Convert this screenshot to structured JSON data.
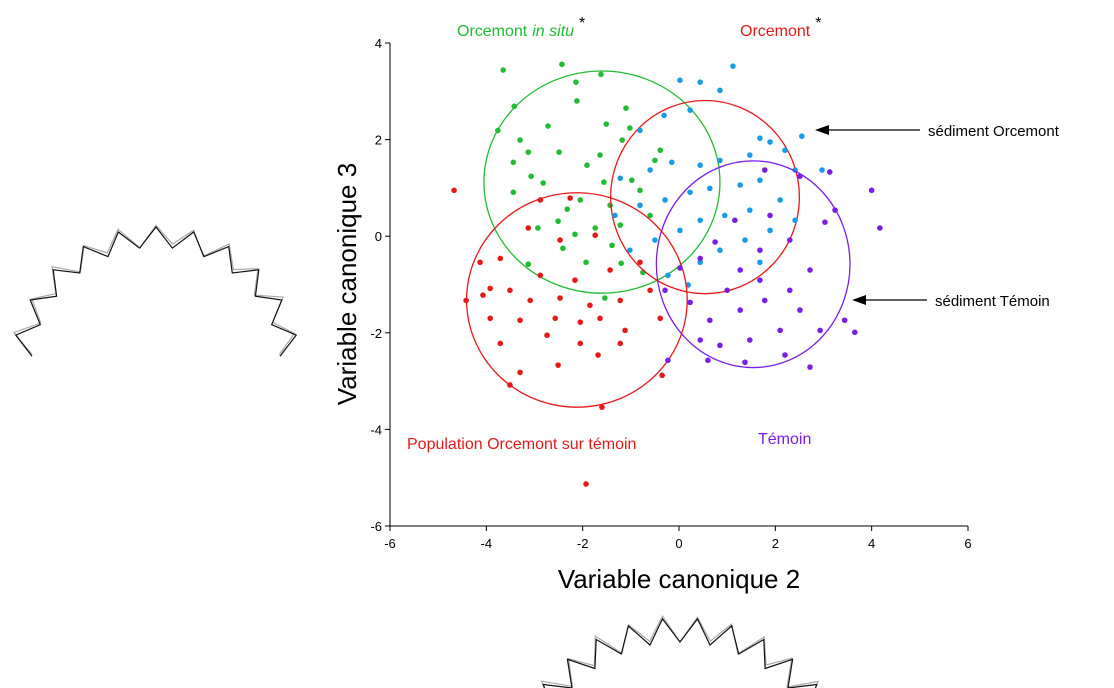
{
  "chart_data": {
    "type": "scatter",
    "xlabel": "Variable canonique 2",
    "ylabel": "Variable canonique 3",
    "xlim": [
      -6,
      6
    ],
    "ylim": [
      -6,
      4
    ],
    "xticks": [
      -6,
      -4,
      -2,
      0,
      2,
      4,
      6
    ],
    "yticks": [
      -6,
      -4,
      -2,
      0,
      2,
      4
    ],
    "series": [
      {
        "name": "Orcemont",
        "name_italic": "in situ",
        "marker": "*",
        "color": "#22bb33",
        "x": [
          -2.43,
          -3.65,
          -1.62,
          -3.42,
          -2.14,
          -2.12,
          -1.1,
          -3.76,
          -2.72,
          -3.3,
          -1.51,
          -1.02,
          -2.49,
          -3.13,
          -3.44,
          -1.91,
          -1.64,
          -1.18,
          -3.07,
          -2.82,
          -3.44,
          -2.32,
          -2.05,
          -1.56,
          -2.51,
          -2.93,
          -2.16,
          -1.74,
          -1.43,
          -0.98,
          -0.5,
          -0.81,
          -1.39,
          -2.41,
          -1.93,
          -3.13,
          -1.22,
          -0.6,
          -0.39,
          -0.75,
          -1.54,
          -1.2
        ],
        "y": [
          3.56,
          3.44,
          3.35,
          2.69,
          3.19,
          2.8,
          2.65,
          2.19,
          2.28,
          1.99,
          2.32,
          2.24,
          1.74,
          1.74,
          1.53,
          1.47,
          1.68,
          1.99,
          1.24,
          1.1,
          0.91,
          0.56,
          0.75,
          1.12,
          0.31,
          0.17,
          0.04,
          0.17,
          0.64,
          1.16,
          1.57,
          0.95,
          -0.19,
          -0.25,
          -0.54,
          -0.58,
          0.23,
          0.43,
          1.78,
          -0.75,
          -1.28,
          -0.56
        ],
        "ellipse": {
          "cx": -1.6,
          "cy": 1.12,
          "rx": 2.45,
          "ry": 2.3
        }
      },
      {
        "name": "Orcemont",
        "marker": "*",
        "color": "#e61919",
        "x": [
          1.12,
          0.02,
          0.44,
          0.85,
          0.23,
          -0.31,
          -0.81,
          1.68,
          1.89,
          2.2,
          1.47,
          0.85,
          0.44,
          -0.15,
          -0.6,
          -1.22,
          2.41,
          1.68,
          1.27,
          0.64,
          0.23,
          -0.29,
          -0.81,
          -1.33,
          2.1,
          1.47,
          0.95,
          0.44,
          0.02,
          -0.5,
          -1.02,
          1.89,
          1.37,
          0.85,
          0.44,
          0.19,
          -0.23,
          2.55,
          2.97,
          2.41,
          1.68
        ],
        "y": [
          3.52,
          3.23,
          3.19,
          3.02,
          2.61,
          2.5,
          2.19,
          2.03,
          1.95,
          1.78,
          1.68,
          1.57,
          1.47,
          1.53,
          1.37,
          1.2,
          1.37,
          1.16,
          1.06,
          0.99,
          0.91,
          0.75,
          0.64,
          0.43,
          0.75,
          0.54,
          0.43,
          0.33,
          0.12,
          -0.08,
          -0.29,
          0.12,
          -0.08,
          -0.29,
          -0.54,
          -1.01,
          -0.81,
          2.07,
          1.37,
          0.33,
          -0.54
        ],
        "point_color": "#1a9be6",
        "ellipse": {
          "cx": 0.54,
          "cy": 0.81,
          "rx": 1.96,
          "ry": 2.0
        }
      },
      {
        "name": "Population Orcemont sur témoin",
        "color": "#e61919",
        "x": [
          -4.67,
          -2.88,
          -2.26,
          -3.13,
          -2.47,
          -1.74,
          -4.13,
          -3.71,
          -2.88,
          -2.16,
          -1.43,
          -0.81,
          -4.42,
          -4.07,
          -3.51,
          -3.09,
          -2.47,
          -1.85,
          -1.22,
          -0.6,
          -3.3,
          -2.57,
          -2.05,
          -1.64,
          -1.12,
          -0.39,
          -3.92,
          -3.71,
          -3.3,
          -3.51,
          -2.51,
          -2.05,
          -1.22,
          -0.35,
          -1.6,
          -1.93,
          -3.92,
          -2.74,
          -1.68
        ],
        "y": [
          0.95,
          0.75,
          0.79,
          0.17,
          -0.08,
          0.02,
          -0.54,
          -0.46,
          -0.81,
          -0.91,
          -0.7,
          -0.54,
          -1.33,
          -1.22,
          -1.12,
          -1.33,
          -1.28,
          -1.43,
          -1.33,
          -1.12,
          -1.74,
          -1.7,
          -1.78,
          -1.7,
          -1.95,
          -1.7,
          -1.7,
          -2.22,
          -2.82,
          -3.08,
          -2.67,
          -2.22,
          -2.22,
          -2.88,
          -3.54,
          -5.13,
          -1.08,
          -2.05,
          -2.46
        ],
        "ellipse": {
          "cx": -2.12,
          "cy": -1.32,
          "rx": 2.29,
          "ry": 2.22
        }
      },
      {
        "name": "Témoin",
        "color": "#7a1ee6",
        "x": [
          1.78,
          2.51,
          3.13,
          3.24,
          4.17,
          4.0,
          3.03,
          2.3,
          1.89,
          1.16,
          0.75,
          0.44,
          0.02,
          -0.29,
          0.23,
          0.64,
          1.27,
          1.78,
          2.3,
          2.72,
          2.51,
          2.93,
          2.1,
          1.47,
          0.85,
          0.44,
          1.37,
          2.2,
          2.72,
          1.68,
          1.27,
          3.44,
          3.65,
          0.6,
          -0.23,
          1.0,
          1.68
        ],
        "y": [
          1.37,
          1.24,
          1.33,
          0.54,
          0.17,
          0.95,
          0.29,
          -0.08,
          0.43,
          0.33,
          -0.12,
          -0.46,
          -0.66,
          -1.12,
          -1.37,
          -1.74,
          -1.53,
          -1.33,
          -1.12,
          -0.7,
          -1.53,
          -1.95,
          -1.95,
          -2.15,
          -2.26,
          -2.15,
          -2.61,
          -2.46,
          -2.71,
          -0.91,
          -0.7,
          -1.74,
          -1.99,
          -2.57,
          -2.57,
          -1.12,
          -0.29
        ],
        "ellipse": {
          "cx": 1.54,
          "cy": -0.58,
          "rx": 2.01,
          "ry": 2.14
        }
      }
    ],
    "annotations": [
      {
        "text": "sédiment Orcemont",
        "color": "#000000"
      },
      {
        "text": "sédiment Témoin",
        "color": "#000000"
      }
    ]
  }
}
